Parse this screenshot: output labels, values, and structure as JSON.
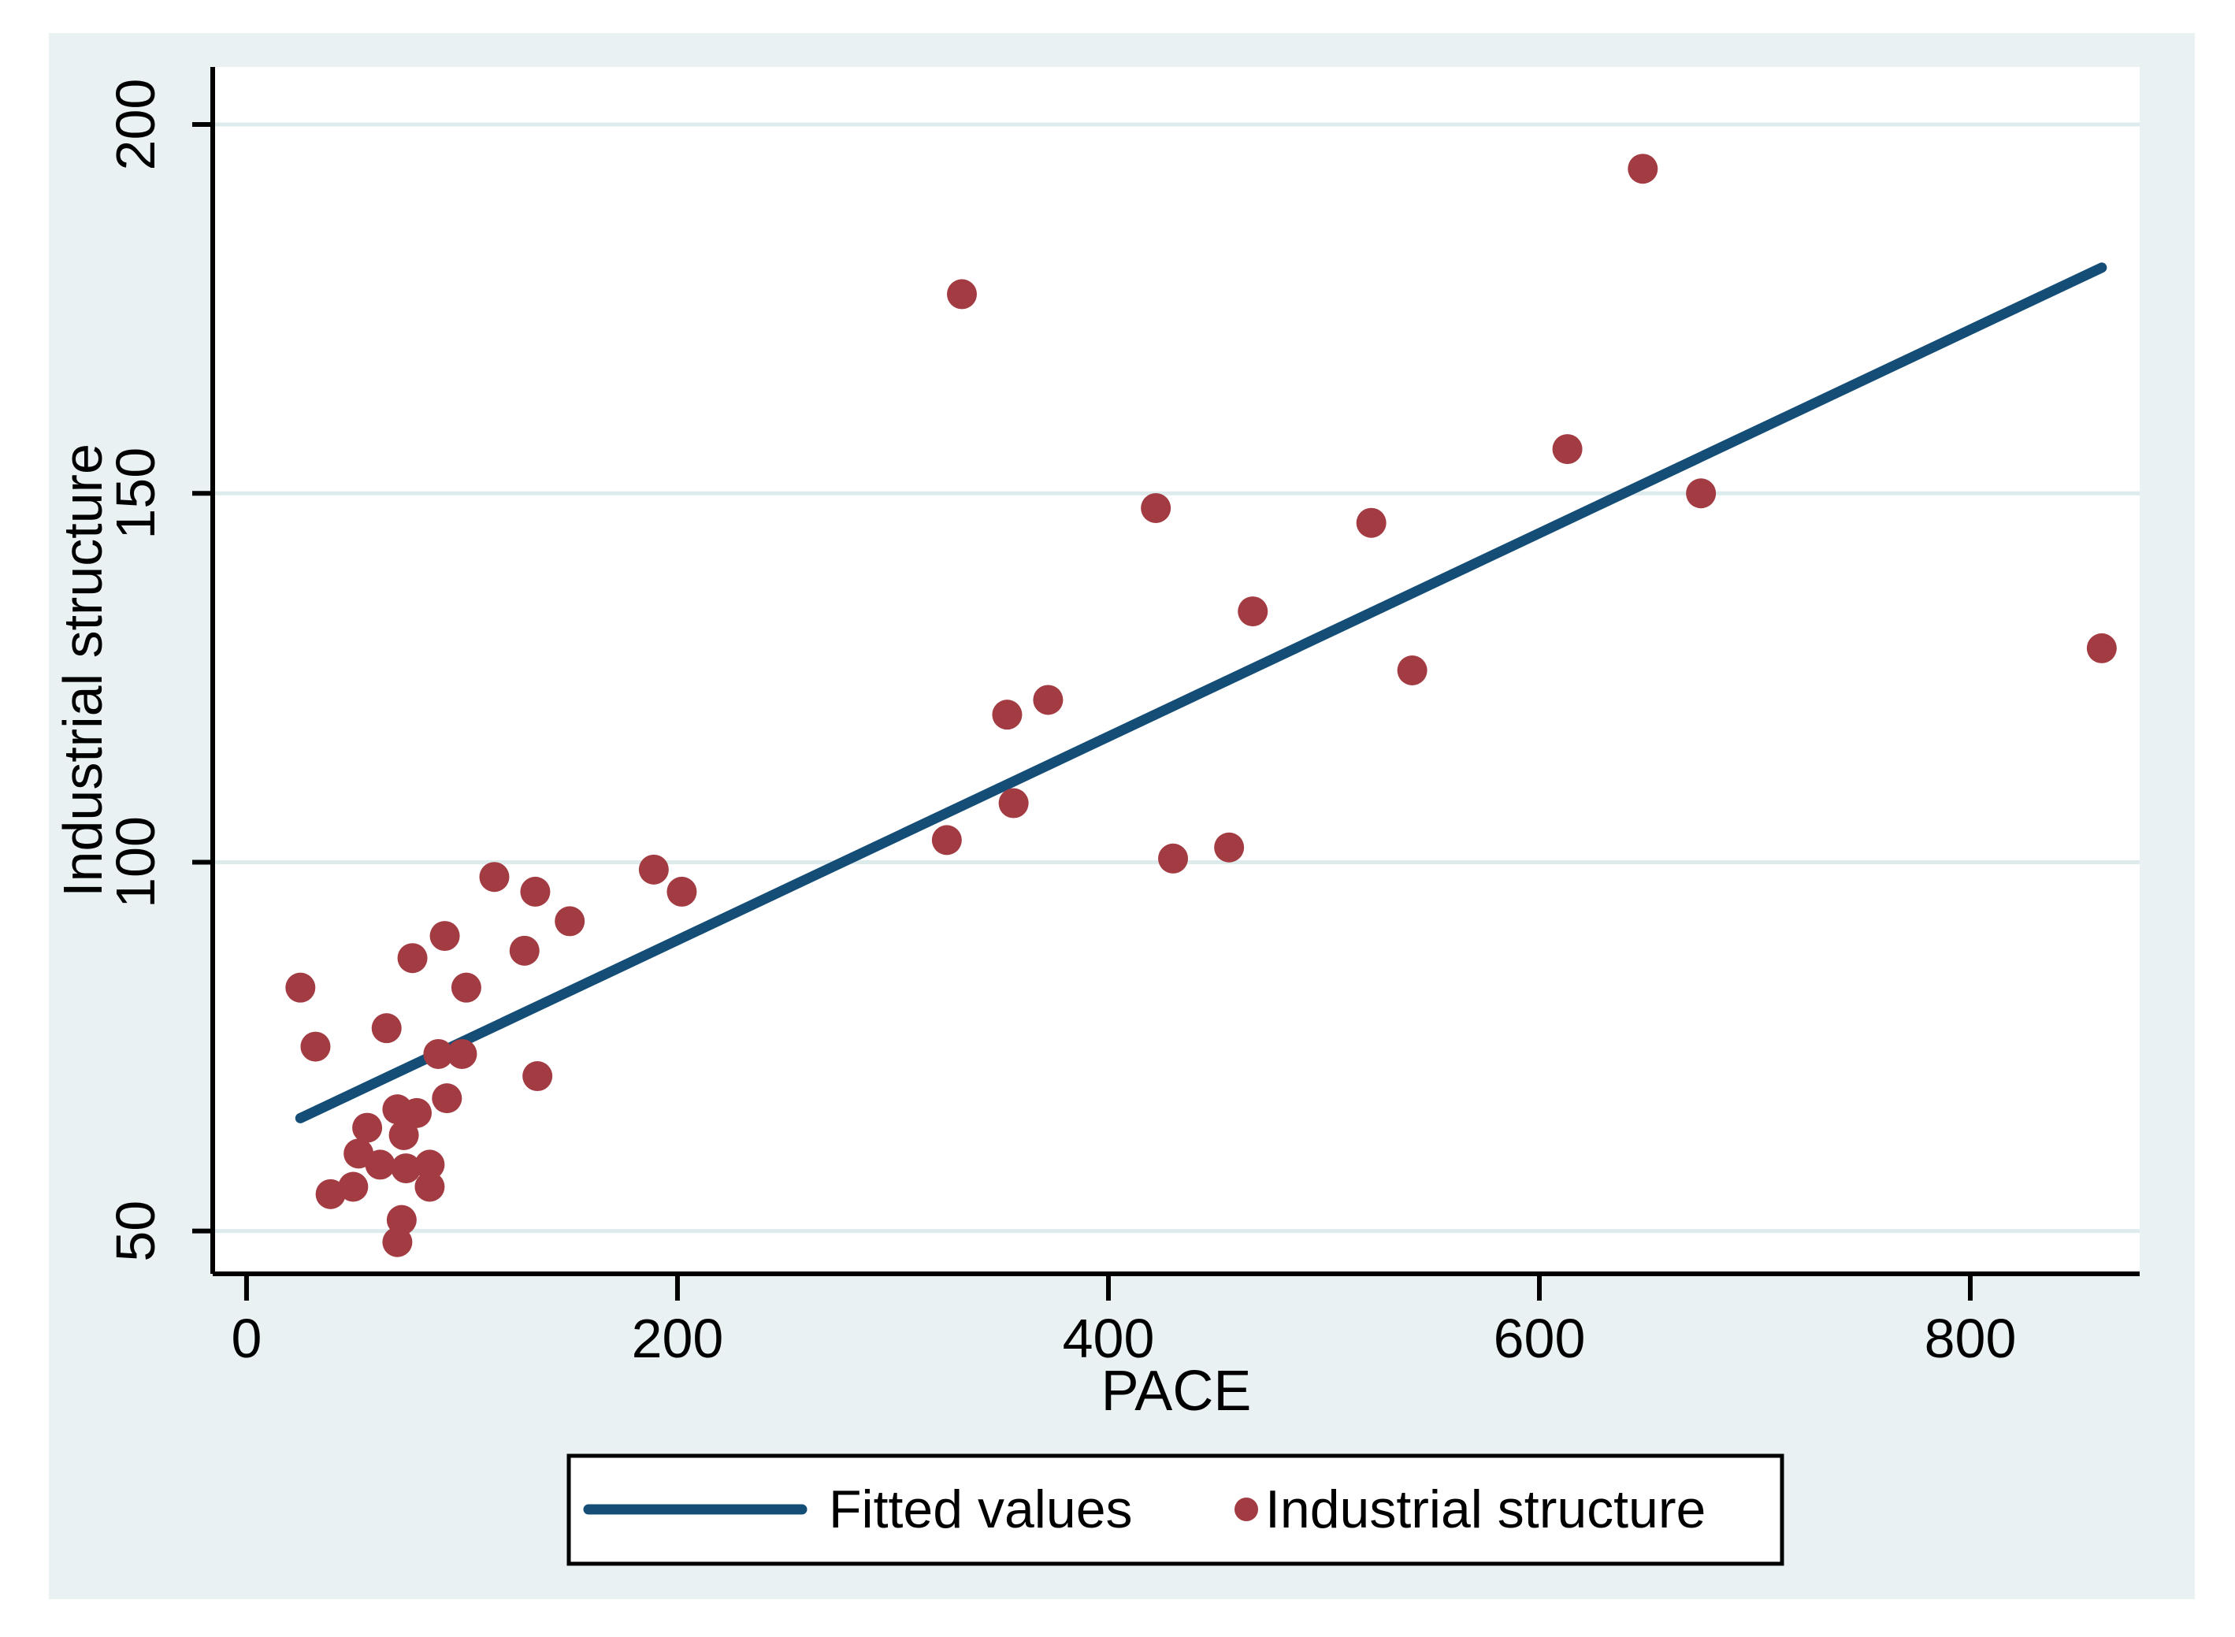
{
  "figure": {
    "background_color": "#E9F1F2",
    "plot_background_color": "#FFFFFF",
    "axis_color": "#000000",
    "gridline_color": "#DEEBED",
    "text_color": "#000000"
  },
  "chart_data": {
    "type": "scatter",
    "title": "",
    "xlabel": "PACE",
    "ylabel": "Industrial structure",
    "x_ticks": [
      0,
      200,
      400,
      600,
      800
    ],
    "y_ticks": [
      50,
      100,
      150,
      200
    ],
    "xlim": [
      -15.7,
      878.6
    ],
    "ylim": [
      44.2,
      207.8
    ],
    "grid": "horizontal-only",
    "legend_position": "bottom-center",
    "series": [
      {
        "name": "Fitted values",
        "type": "line",
        "color": "#144D76",
        "x": [
          25,
          861
        ],
        "y": [
          65.3,
          180.6
        ]
      },
      {
        "name": "Industrial structure",
        "type": "scatter",
        "color": "#A33B42",
        "points": [
          [
            25,
            83
          ],
          [
            32,
            75
          ],
          [
            65,
            77.5
          ],
          [
            77,
            87
          ],
          [
            92,
            90
          ],
          [
            115,
            98
          ],
          [
            134,
            96
          ],
          [
            150,
            92
          ],
          [
            129,
            88
          ],
          [
            102,
            83
          ],
          [
            189,
            99
          ],
          [
            202,
            96
          ],
          [
            89,
            74
          ],
          [
            100,
            74
          ],
          [
            135,
            71
          ],
          [
            93,
            68
          ],
          [
            70,
            66.5
          ],
          [
            79,
            66
          ],
          [
            73,
            63
          ],
          [
            56,
            64
          ],
          [
            52,
            60.5
          ],
          [
            62,
            59
          ],
          [
            74,
            58.5
          ],
          [
            85,
            59
          ],
          [
            85,
            56
          ],
          [
            49.5,
            56
          ],
          [
            39,
            55
          ],
          [
            72,
            51.5
          ],
          [
            70,
            48.5
          ],
          [
            332,
            177
          ],
          [
            353,
            120
          ],
          [
            372,
            122
          ],
          [
            356,
            108
          ],
          [
            325,
            103
          ],
          [
            430,
            100.5
          ],
          [
            456,
            102
          ],
          [
            422,
            148
          ],
          [
            467,
            134
          ],
          [
            522,
            146
          ],
          [
            541,
            126
          ],
          [
            613,
            156
          ],
          [
            675,
            150
          ],
          [
            648,
            194
          ],
          [
            861,
            129
          ]
        ]
      }
    ]
  },
  "legend": {
    "items": [
      {
        "label": "Fitted values",
        "marker": "line",
        "color": "#144D76"
      },
      {
        "label": "Industrial structure",
        "marker": "dot",
        "color": "#A33B42"
      }
    ]
  }
}
